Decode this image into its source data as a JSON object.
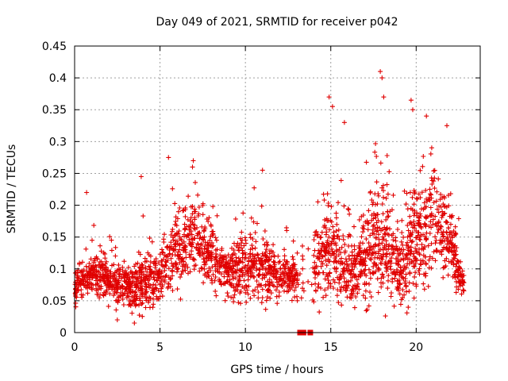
{
  "chart_data": {
    "type": "scatter",
    "title": "Day 049 of 2021, SRMTID for receiver p042",
    "xlabel": "GPS time / hours",
    "ylabel": "SRMTID / TECUs",
    "xlim": [
      0,
      23.75
    ],
    "ylim": [
      0,
      0.45
    ],
    "x_ticks": [
      0,
      5,
      10,
      15,
      20
    ],
    "x_tick_labels": [
      "0",
      "5",
      "10",
      "15",
      "20"
    ],
    "y_ticks": [
      0,
      0.05,
      0.1,
      0.15,
      0.2,
      0.25,
      0.3,
      0.35,
      0.4,
      0.45
    ],
    "y_tick_labels": [
      "0",
      "0.05",
      "0.1",
      "0.15",
      "0.2",
      "0.25",
      "0.3",
      "0.35",
      "0.4",
      "0.45"
    ],
    "grid": true,
    "marker": "plus",
    "color": "#e00000",
    "data_extent_hours": [
      0,
      22.8
    ],
    "zero_value_points": [
      [
        13.2,
        0.0
      ],
      [
        13.3,
        0.0
      ],
      [
        13.4,
        0.0
      ],
      [
        13.8,
        0.0
      ]
    ],
    "trend": {
      "description": "Approximate local median and spread of SRMTID vs time (hours)",
      "x": [
        0,
        1,
        2,
        3,
        4,
        5,
        6,
        7,
        8,
        9,
        10,
        11,
        12,
        13,
        14,
        15,
        16,
        17,
        18,
        19,
        20,
        21,
        22,
        22.8
      ],
      "median": [
        0.07,
        0.09,
        0.08,
        0.07,
        0.07,
        0.09,
        0.12,
        0.15,
        0.12,
        0.09,
        0.1,
        0.1,
        0.09,
        0.08,
        0.1,
        0.13,
        0.09,
        0.12,
        0.15,
        0.1,
        0.13,
        0.18,
        0.14,
        0.07
      ],
      "spread": [
        0.03,
        0.04,
        0.04,
        0.04,
        0.05,
        0.05,
        0.07,
        0.07,
        0.06,
        0.05,
        0.06,
        0.06,
        0.05,
        0.04,
        0.07,
        0.09,
        0.06,
        0.1,
        0.12,
        0.08,
        0.1,
        0.1,
        0.07,
        0.02
      ]
    },
    "notable_points": [
      [
        0.7,
        0.22
      ],
      [
        3.9,
        0.245
      ],
      [
        5.5,
        0.275
      ],
      [
        6.9,
        0.26
      ],
      [
        11.0,
        0.255
      ],
      [
        14.9,
        0.37
      ],
      [
        15.1,
        0.355
      ],
      [
        15.8,
        0.33
      ],
      [
        17.9,
        0.41
      ],
      [
        18.0,
        0.4
      ],
      [
        18.1,
        0.37
      ],
      [
        19.7,
        0.365
      ],
      [
        19.8,
        0.35
      ],
      [
        20.6,
        0.34
      ],
      [
        21.8,
        0.325
      ],
      [
        18.2,
        0.026
      ],
      [
        2.5,
        0.02
      ],
      [
        3.5,
        0.015
      ]
    ]
  }
}
